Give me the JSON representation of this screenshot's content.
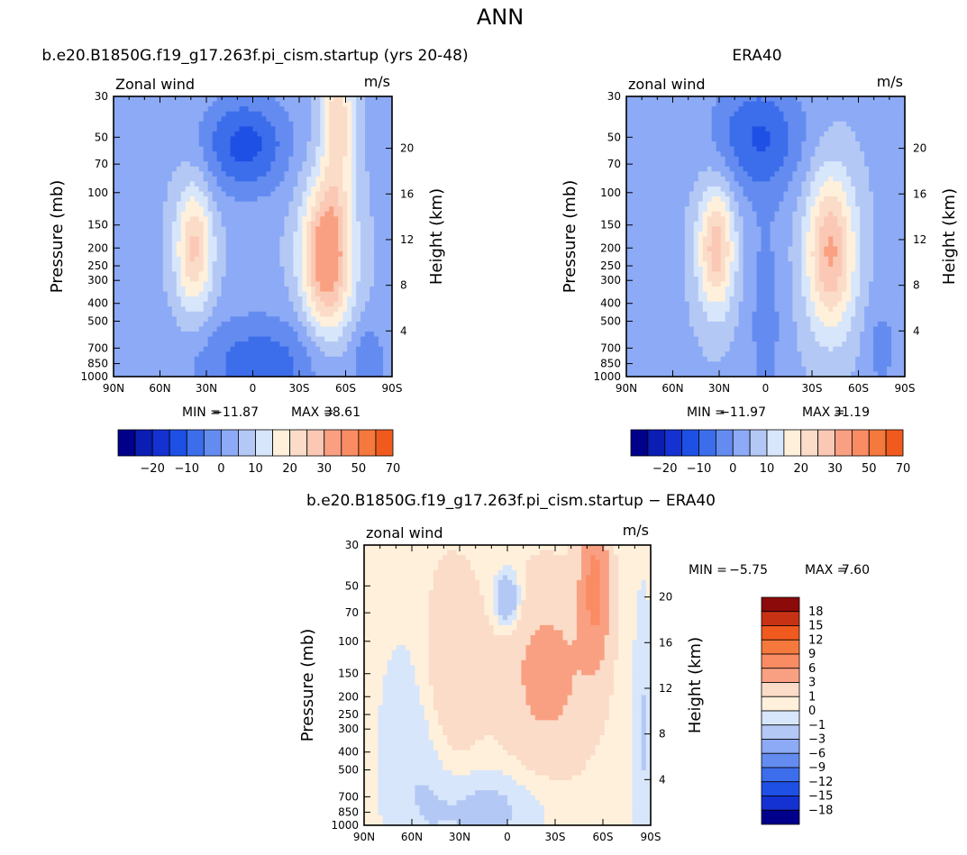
{
  "main_title": "ANN",
  "colors": {
    "blue_ramp": [
      "#00008b",
      "#0a1eb4",
      "#1432d2",
      "#1e50e6",
      "#3c6eeb",
      "#648cf0",
      "#8caaf5",
      "#b4c8f5",
      "#d7e6fa"
    ],
    "red_ramp": [
      "#fff0dc",
      "#fadcc8",
      "#fac8b4",
      "#faa082",
      "#fa8c64",
      "#f5783c",
      "#f05a1e",
      "#c83214",
      "#8c0a0a"
    ],
    "panel_bg": "#e8eefa"
  },
  "chart_data": [
    {
      "type": "heatmap",
      "id": "model",
      "title": "b.e20.B1850G.f19_g17.263f.pi_cism.startup (yrs 20-48)",
      "left_label": "Zonal wind",
      "right_label": "m/s",
      "xlabel": "",
      "ylabel": "Pressure (mb)",
      "ylabel_right": "Height (km)",
      "x_ticks": [
        "90N",
        "60N",
        "30N",
        "0",
        "30S",
        "60S",
        "90S"
      ],
      "y_ticks": [
        30,
        50,
        70,
        100,
        150,
        200,
        250,
        300,
        400,
        500,
        700,
        850,
        1000
      ],
      "height_ticks": [
        4,
        8,
        12,
        16,
        20
      ],
      "min_label": "MIN =",
      "min_value": "−11.87",
      "max_label": "MAX =",
      "max_value": "38.61",
      "colorbar_labels": [
        "−20",
        "−10",
        "0",
        "10",
        "20",
        "30",
        "50",
        "70"
      ],
      "fields": [
        {
          "lat": -48,
          "p": 220,
          "sx": 16,
          "sy": 0.95,
          "amp": 34
        },
        {
          "lat": -55,
          "p": 40,
          "sx": 10,
          "sy": 0.9,
          "amp": 20
        },
        {
          "lat": 38,
          "p": 200,
          "sx": 12,
          "sy": 0.8,
          "amp": 22
        },
        {
          "lat": 5,
          "p": 55,
          "sx": 28,
          "sy": 0.6,
          "amp": -16
        },
        {
          "lat": -5,
          "p": 850,
          "sx": 45,
          "sy": 0.6,
          "amp": -12
        },
        {
          "lat": -75,
          "p": 800,
          "sx": 10,
          "sy": 0.4,
          "amp": -8
        }
      ],
      "base": 4
    },
    {
      "type": "heatmap",
      "id": "obs",
      "title": "ERA40",
      "left_label": "zonal wind",
      "right_label": "m/s",
      "xlabel": "",
      "ylabel": "Pressure (mb)",
      "ylabel_right": "Height (km)",
      "x_ticks": [
        "90N",
        "60N",
        "30N",
        "0",
        "30S",
        "60S",
        "90S"
      ],
      "y_ticks": [
        30,
        50,
        70,
        100,
        150,
        200,
        250,
        300,
        400,
        500,
        700,
        850,
        1000
      ],
      "height_ticks": [
        4,
        8,
        12,
        16,
        20
      ],
      "min_label": "MIN =",
      "min_value": "−11.97",
      "max_label": "MAX =",
      "max_value": "31.19",
      "colorbar_labels": [
        "−20",
        "−10",
        "0",
        "10",
        "20",
        "30",
        "50",
        "70"
      ],
      "fields": [
        {
          "lat": -42,
          "p": 210,
          "sx": 16,
          "sy": 1.0,
          "amp": 27
        },
        {
          "lat": 32,
          "p": 200,
          "sx": 12,
          "sy": 0.8,
          "amp": 24
        },
        {
          "lat": 5,
          "p": 50,
          "sx": 30,
          "sy": 0.7,
          "amp": -14
        },
        {
          "lat": 0,
          "p": 500,
          "sx": 12,
          "sy": 1.6,
          "amp": -6
        },
        {
          "lat": -75,
          "p": 700,
          "sx": 10,
          "sy": 0.6,
          "amp": -6
        }
      ],
      "base": 4
    },
    {
      "type": "heatmap",
      "id": "diff",
      "title": "b.e20.B1850G.f19_g17.263f.pi_cism.startup − ERA40",
      "left_label": "zonal wind",
      "right_label": "m/s",
      "xlabel": "",
      "ylabel": "Pressure (mb)",
      "ylabel_right": "Height (km)",
      "x_ticks": [
        "90N",
        "60N",
        "30N",
        "0",
        "30S",
        "60S",
        "90S"
      ],
      "y_ticks": [
        30,
        50,
        70,
        100,
        150,
        200,
        250,
        300,
        400,
        500,
        700,
        850,
        1000
      ],
      "height_ticks": [
        4,
        8,
        12,
        16,
        20
      ],
      "min_label": "MIN =",
      "min_value": "−5.75",
      "max_label": "MAX =",
      "max_value": "7.60",
      "colorbar_labels": [
        "18",
        "15",
        "12",
        "9",
        "6",
        "3",
        "1",
        "0",
        "−1",
        "−3",
        "−6",
        "−9",
        "−12",
        "−15",
        "−18"
      ],
      "fields": [
        {
          "lat": -55,
          "p": 50,
          "sx": 9,
          "sy": 0.9,
          "amp": 6.5
        },
        {
          "lat": -25,
          "p": 150,
          "sx": 30,
          "sy": 1.2,
          "amp": 3.5
        },
        {
          "lat": 35,
          "p": 150,
          "sx": 18,
          "sy": 1.3,
          "amp": 3
        },
        {
          "lat": 0,
          "p": 60,
          "sx": 8,
          "sy": 0.35,
          "amp": -4
        },
        {
          "lat": 50,
          "p": 400,
          "sx": 25,
          "sy": 1.5,
          "amp": -1.5
        },
        {
          "lat": 10,
          "p": 800,
          "sx": 35,
          "sy": 0.5,
          "amp": -1.8
        },
        {
          "lat": -85,
          "p": 300,
          "sx": 6,
          "sy": 1.5,
          "amp": -1.5
        }
      ],
      "base": 0.3
    }
  ]
}
